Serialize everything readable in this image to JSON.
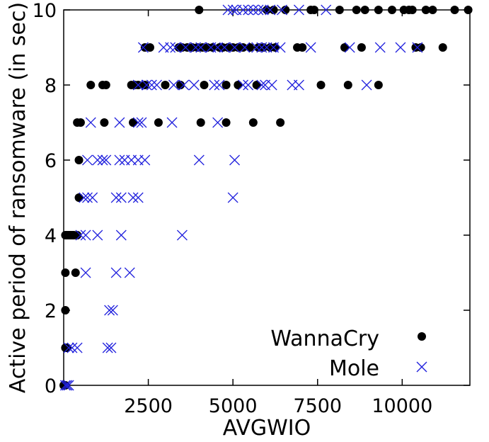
{
  "chart_data": {
    "type": "scatter",
    "xlabel": "AVGWIO",
    "ylabel": "Active period of ransomware (in sec)",
    "xlim": [
      0,
      12000
    ],
    "ylim": [
      0,
      10
    ],
    "x_ticks": [
      2500,
      5000,
      7500,
      10000
    ],
    "x_tick_labels": [
      "2500",
      "5000",
      "7500",
      "10000"
    ],
    "y_ticks": [
      0,
      2,
      4,
      6,
      8,
      10
    ],
    "y_tick_labels": [
      "0",
      "2",
      "4",
      "6",
      "8",
      "10"
    ],
    "grid": false,
    "legend_position": "bottom-right",
    "series": [
      {
        "name": "WannaCry",
        "marker": "filled-circle",
        "color": "#000000",
        "points": [
          [
            0,
            0
          ],
          [
            50,
            0
          ],
          [
            50,
            1
          ],
          [
            100,
            1
          ],
          [
            50,
            2
          ],
          [
            50,
            3
          ],
          [
            350,
            3
          ],
          [
            50,
            4
          ],
          [
            100,
            4
          ],
          [
            150,
            4
          ],
          [
            200,
            4
          ],
          [
            250,
            4
          ],
          [
            300,
            4
          ],
          [
            400,
            4
          ],
          [
            450,
            5
          ],
          [
            450,
            6
          ],
          [
            400,
            7
          ],
          [
            500,
            7
          ],
          [
            1200,
            7
          ],
          [
            2050,
            7
          ],
          [
            2800,
            7
          ],
          [
            4050,
            7
          ],
          [
            4800,
            7
          ],
          [
            5600,
            7
          ],
          [
            6400,
            7
          ],
          [
            800,
            8
          ],
          [
            1150,
            8
          ],
          [
            1250,
            8
          ],
          [
            2000,
            8
          ],
          [
            2100,
            8
          ],
          [
            2200,
            8
          ],
          [
            2400,
            8
          ],
          [
            3000,
            8
          ],
          [
            3450,
            8
          ],
          [
            4150,
            8
          ],
          [
            4800,
            8
          ],
          [
            5150,
            8
          ],
          [
            5700,
            8
          ],
          [
            7600,
            8
          ],
          [
            8400,
            8
          ],
          [
            9300,
            8
          ],
          [
            2400,
            9
          ],
          [
            2550,
            9
          ],
          [
            3400,
            9
          ],
          [
            3500,
            9
          ],
          [
            3650,
            9
          ],
          [
            3800,
            9
          ],
          [
            3950,
            9
          ],
          [
            4100,
            9
          ],
          [
            4250,
            9
          ],
          [
            4400,
            9
          ],
          [
            4600,
            9
          ],
          [
            4700,
            9
          ],
          [
            4850,
            9
          ],
          [
            5000,
            9
          ],
          [
            5150,
            9
          ],
          [
            5300,
            9
          ],
          [
            5500,
            9
          ],
          [
            5750,
            9
          ],
          [
            5900,
            9
          ],
          [
            6100,
            9
          ],
          [
            6250,
            9
          ],
          [
            6900,
            9
          ],
          [
            7050,
            9
          ],
          [
            8300,
            9
          ],
          [
            8800,
            9
          ],
          [
            10400,
            9
          ],
          [
            10550,
            9
          ],
          [
            11200,
            9
          ],
          [
            4000,
            10
          ],
          [
            6000,
            10
          ],
          [
            6200,
            10
          ],
          [
            6550,
            10
          ],
          [
            7300,
            10
          ],
          [
            7400,
            10
          ],
          [
            8150,
            10
          ],
          [
            8650,
            10
          ],
          [
            8900,
            10
          ],
          [
            9300,
            10
          ],
          [
            9700,
            10
          ],
          [
            10050,
            10
          ],
          [
            10200,
            10
          ],
          [
            10300,
            10
          ],
          [
            10700,
            10
          ],
          [
            10900,
            10
          ],
          [
            11550,
            10
          ],
          [
            11950,
            10
          ]
        ]
      },
      {
        "name": "Mole",
        "marker": "cross",
        "color": "#2222dd",
        "points": [
          [
            50,
            0
          ],
          [
            100,
            0
          ],
          [
            150,
            0
          ],
          [
            150,
            1
          ],
          [
            250,
            1
          ],
          [
            400,
            1
          ],
          [
            1300,
            1
          ],
          [
            1400,
            1
          ],
          [
            1350,
            2
          ],
          [
            1450,
            2
          ],
          [
            650,
            3
          ],
          [
            1550,
            3
          ],
          [
            1950,
            3
          ],
          [
            500,
            4
          ],
          [
            650,
            4
          ],
          [
            1000,
            4
          ],
          [
            1700,
            4
          ],
          [
            3500,
            4
          ],
          [
            600,
            5
          ],
          [
            700,
            5
          ],
          [
            850,
            5
          ],
          [
            1550,
            5
          ],
          [
            1700,
            5
          ],
          [
            2050,
            5
          ],
          [
            2200,
            5
          ],
          [
            5000,
            5
          ],
          [
            700,
            6
          ],
          [
            1000,
            6
          ],
          [
            1150,
            6
          ],
          [
            1250,
            6
          ],
          [
            1650,
            6
          ],
          [
            1800,
            6
          ],
          [
            2000,
            6
          ],
          [
            2200,
            6
          ],
          [
            2400,
            6
          ],
          [
            4000,
            6
          ],
          [
            5050,
            6
          ],
          [
            800,
            7
          ],
          [
            1650,
            7
          ],
          [
            2200,
            7
          ],
          [
            2300,
            7
          ],
          [
            3200,
            7
          ],
          [
            4550,
            7
          ],
          [
            2200,
            8
          ],
          [
            2450,
            8
          ],
          [
            2600,
            8
          ],
          [
            2750,
            8
          ],
          [
            3250,
            8
          ],
          [
            3550,
            8
          ],
          [
            3850,
            8
          ],
          [
            4450,
            8
          ],
          [
            4600,
            8
          ],
          [
            5300,
            8
          ],
          [
            5450,
            8
          ],
          [
            5850,
            8
          ],
          [
            5950,
            8
          ],
          [
            6150,
            8
          ],
          [
            6750,
            8
          ],
          [
            6950,
            8
          ],
          [
            8950,
            8
          ],
          [
            2350,
            9
          ],
          [
            2950,
            9
          ],
          [
            3150,
            9
          ],
          [
            3300,
            9
          ],
          [
            3600,
            9
          ],
          [
            3900,
            9
          ],
          [
            4050,
            9
          ],
          [
            4350,
            9
          ],
          [
            4550,
            9
          ],
          [
            4750,
            9
          ],
          [
            5050,
            9
          ],
          [
            5350,
            9
          ],
          [
            5700,
            9
          ],
          [
            5850,
            9
          ],
          [
            6000,
            9
          ],
          [
            6200,
            9
          ],
          [
            6400,
            9
          ],
          [
            7300,
            9
          ],
          [
            8450,
            9
          ],
          [
            9350,
            9
          ],
          [
            9950,
            9
          ],
          [
            10450,
            9
          ],
          [
            4850,
            10
          ],
          [
            5000,
            10
          ],
          [
            5100,
            10
          ],
          [
            5300,
            10
          ],
          [
            5450,
            10
          ],
          [
            5600,
            10
          ],
          [
            5750,
            10
          ],
          [
            5900,
            10
          ],
          [
            6100,
            10
          ],
          [
            6450,
            10
          ],
          [
            6950,
            10
          ],
          [
            7750,
            10
          ]
        ]
      }
    ]
  }
}
